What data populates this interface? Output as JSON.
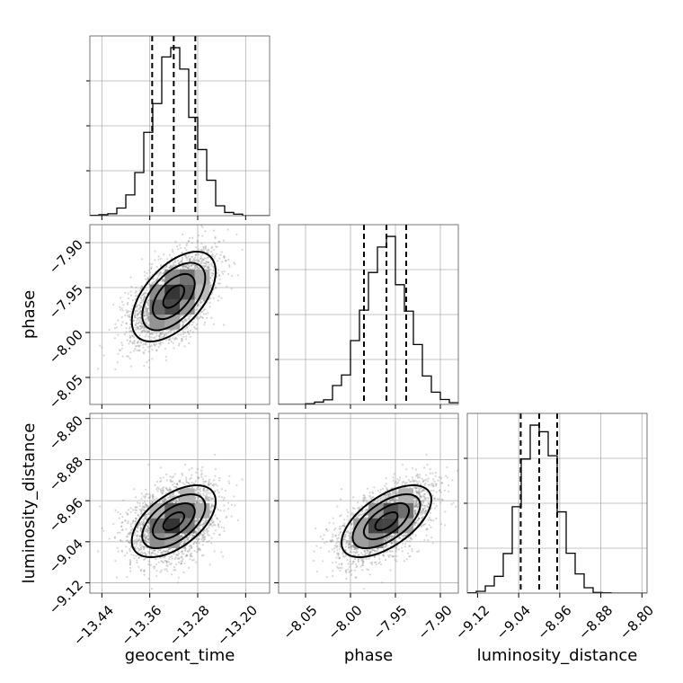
{
  "chart_data": {
    "type": "corner",
    "parameters": [
      {
        "name": "geocent_time",
        "range": [
          -13.46,
          -13.16
        ],
        "ticks": [
          -13.44,
          -13.36,
          -13.28,
          -13.2
        ],
        "tick_labels": [
          "−13.44",
          "−13.36",
          "−13.28",
          "−13.20"
        ],
        "mean": -13.32,
        "std": 0.035,
        "quantiles": [
          -13.356,
          -13.32,
          -13.284
        ]
      },
      {
        "name": "phase",
        "range": [
          -8.08,
          -7.88
        ],
        "ticks": [
          -8.05,
          -8.0,
          -7.95,
          -7.9
        ],
        "tick_labels": [
          "−8.05",
          "−8.00",
          "−7.95",
          "−7.90"
        ],
        "mean": -7.96,
        "std": 0.025,
        "quantiles": [
          -7.985,
          -7.96,
          -7.938
        ]
      },
      {
        "name": "luminosity_distance",
        "range": [
          -9.14,
          -8.79
        ],
        "ticks": [
          -9.12,
          -9.04,
          -8.96,
          -8.88,
          -8.8
        ],
        "tick_labels": [
          "−9.12",
          "−9.04",
          "−8.96",
          "−8.88",
          "−8.80"
        ],
        "mean": -9.0,
        "std": 0.035,
        "quantiles": [
          -9.036,
          -9.0,
          -8.965
        ]
      }
    ],
    "correlations": {
      "0-1": 0.55,
      "0-2": 0.55,
      "1-2": 0.6
    },
    "histogram_bins": 20,
    "samples_shown": 3000,
    "contour_levels": [
      0.5,
      1.0,
      1.5,
      2.0
    ],
    "grid": true,
    "line_color": "#000000",
    "grid_color": "#b0b0b0",
    "point_color": "#8a8a8a"
  }
}
